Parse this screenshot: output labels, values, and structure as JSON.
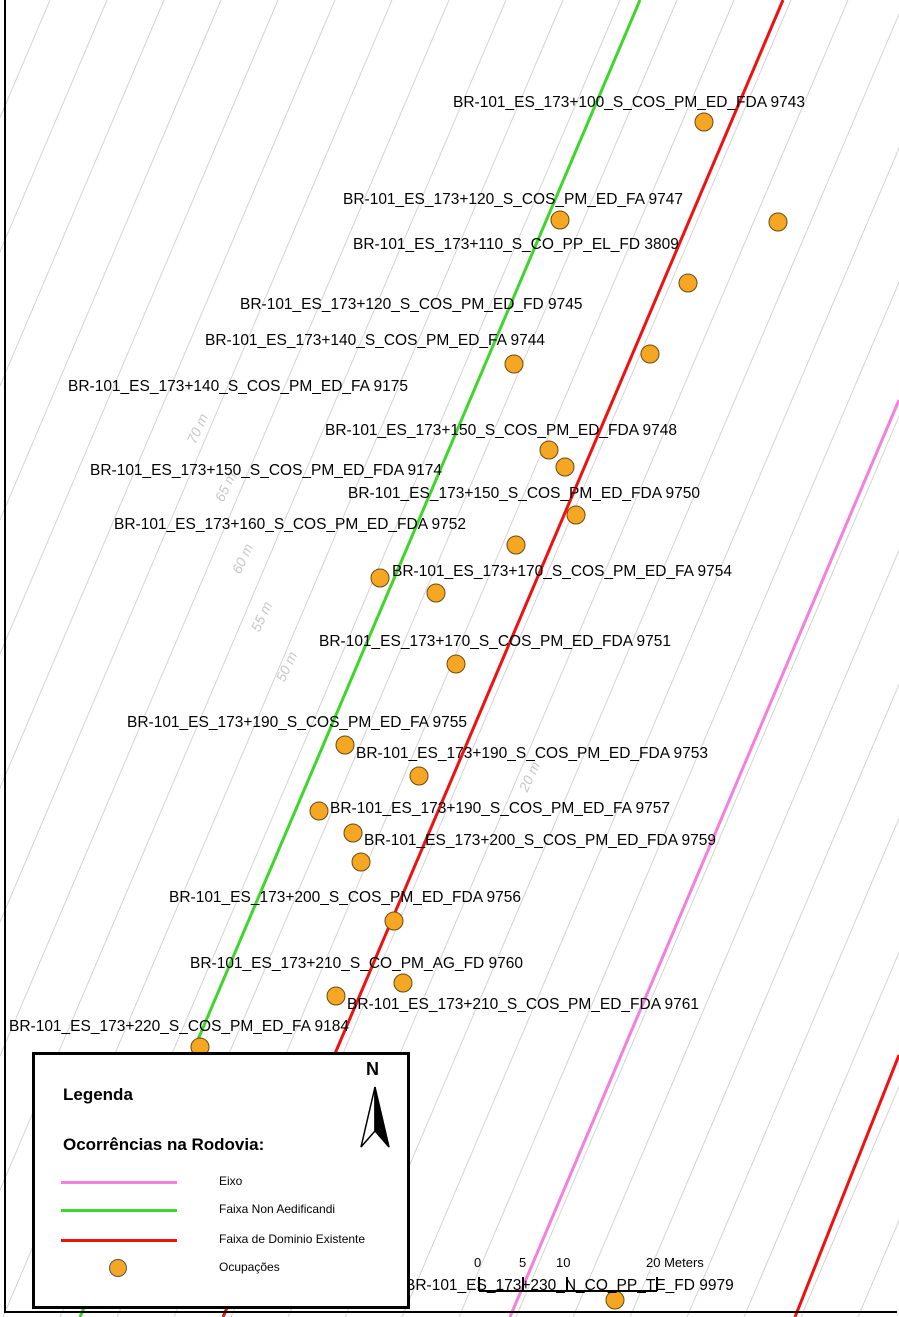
{
  "labels": [
    "BR-101_ES_173+100_S_COS_PM_ED_FDA 9743",
    "BR-101_ES_173+120_S_COS_PM_ED_FA 9747",
    "BR-101_ES_173+110_S_CO_PP_EL_FD 3809",
    "BR-101_ES_173+120_S_COS_PM_ED_FD 9745",
    "BR-101_ES_173+140_S_COS_PM_ED_FA 9744",
    "BR-101_ES_173+140_S_COS_PM_ED_FA 9175",
    "BR-101_ES_173+150_S_COS_PM_ED_FDA 9748",
    "BR-101_ES_173+150_S_COS_PM_ED_FDA 9174",
    "BR-101_ES_173+150_S_COS_PM_ED_FDA 9750",
    "BR-101_ES_173+160_S_COS_PM_ED_FDA 9752",
    "BR-101_ES_173+170_S_COS_PM_ED_FA 9754",
    "BR-101_ES_173+170_S_COS_PM_ED_FDA 9751",
    "BR-101_ES_173+190_S_COS_PM_ED_FA 9755",
    "BR-101_ES_173+190_S_COS_PM_ED_FDA 9753",
    "BR-101_ES_173+190_S_COS_PM_ED_FA 9757",
    "BR-101_ES_173+200_S_COS_PM_ED_FDA 9759",
    "BR-101_ES_173+200_S_COS_PM_ED_FDA 9756",
    "BR-101_ES_173+210_S_CO_PM_AG_FD 9760",
    "BR-101_ES_173+210_S_COS_PM_ED_FDA 9761",
    "BR-101_ES_173+220_S_COS_PM_ED_FA 9184",
    "BR-101_ES_173+230_N_CO_PP_TE_FD 9979"
  ],
  "distance_labels": [
    "70 m",
    "65 m",
    "60 m",
    "55 m",
    "50 m",
    "20 m"
  ],
  "legend": {
    "title": "Legenda",
    "subtitle": "Ocorrências na Rodovia:",
    "items": [
      {
        "label": "Eixo",
        "color": "#f47fdc",
        "kind": "line"
      },
      {
        "label": "Faixa Non Aedificandi",
        "color": "#3fd62b",
        "kind": "line"
      },
      {
        "label": "Faixa de Dominio Existente",
        "color": "#f01010",
        "kind": "line"
      },
      {
        "label": "Ocupações",
        "color": "#f5a623",
        "kind": "dot"
      }
    ]
  },
  "north": "N",
  "scale": {
    "ticks": [
      "0",
      "5",
      "10",
      "20 Meters"
    ]
  }
}
